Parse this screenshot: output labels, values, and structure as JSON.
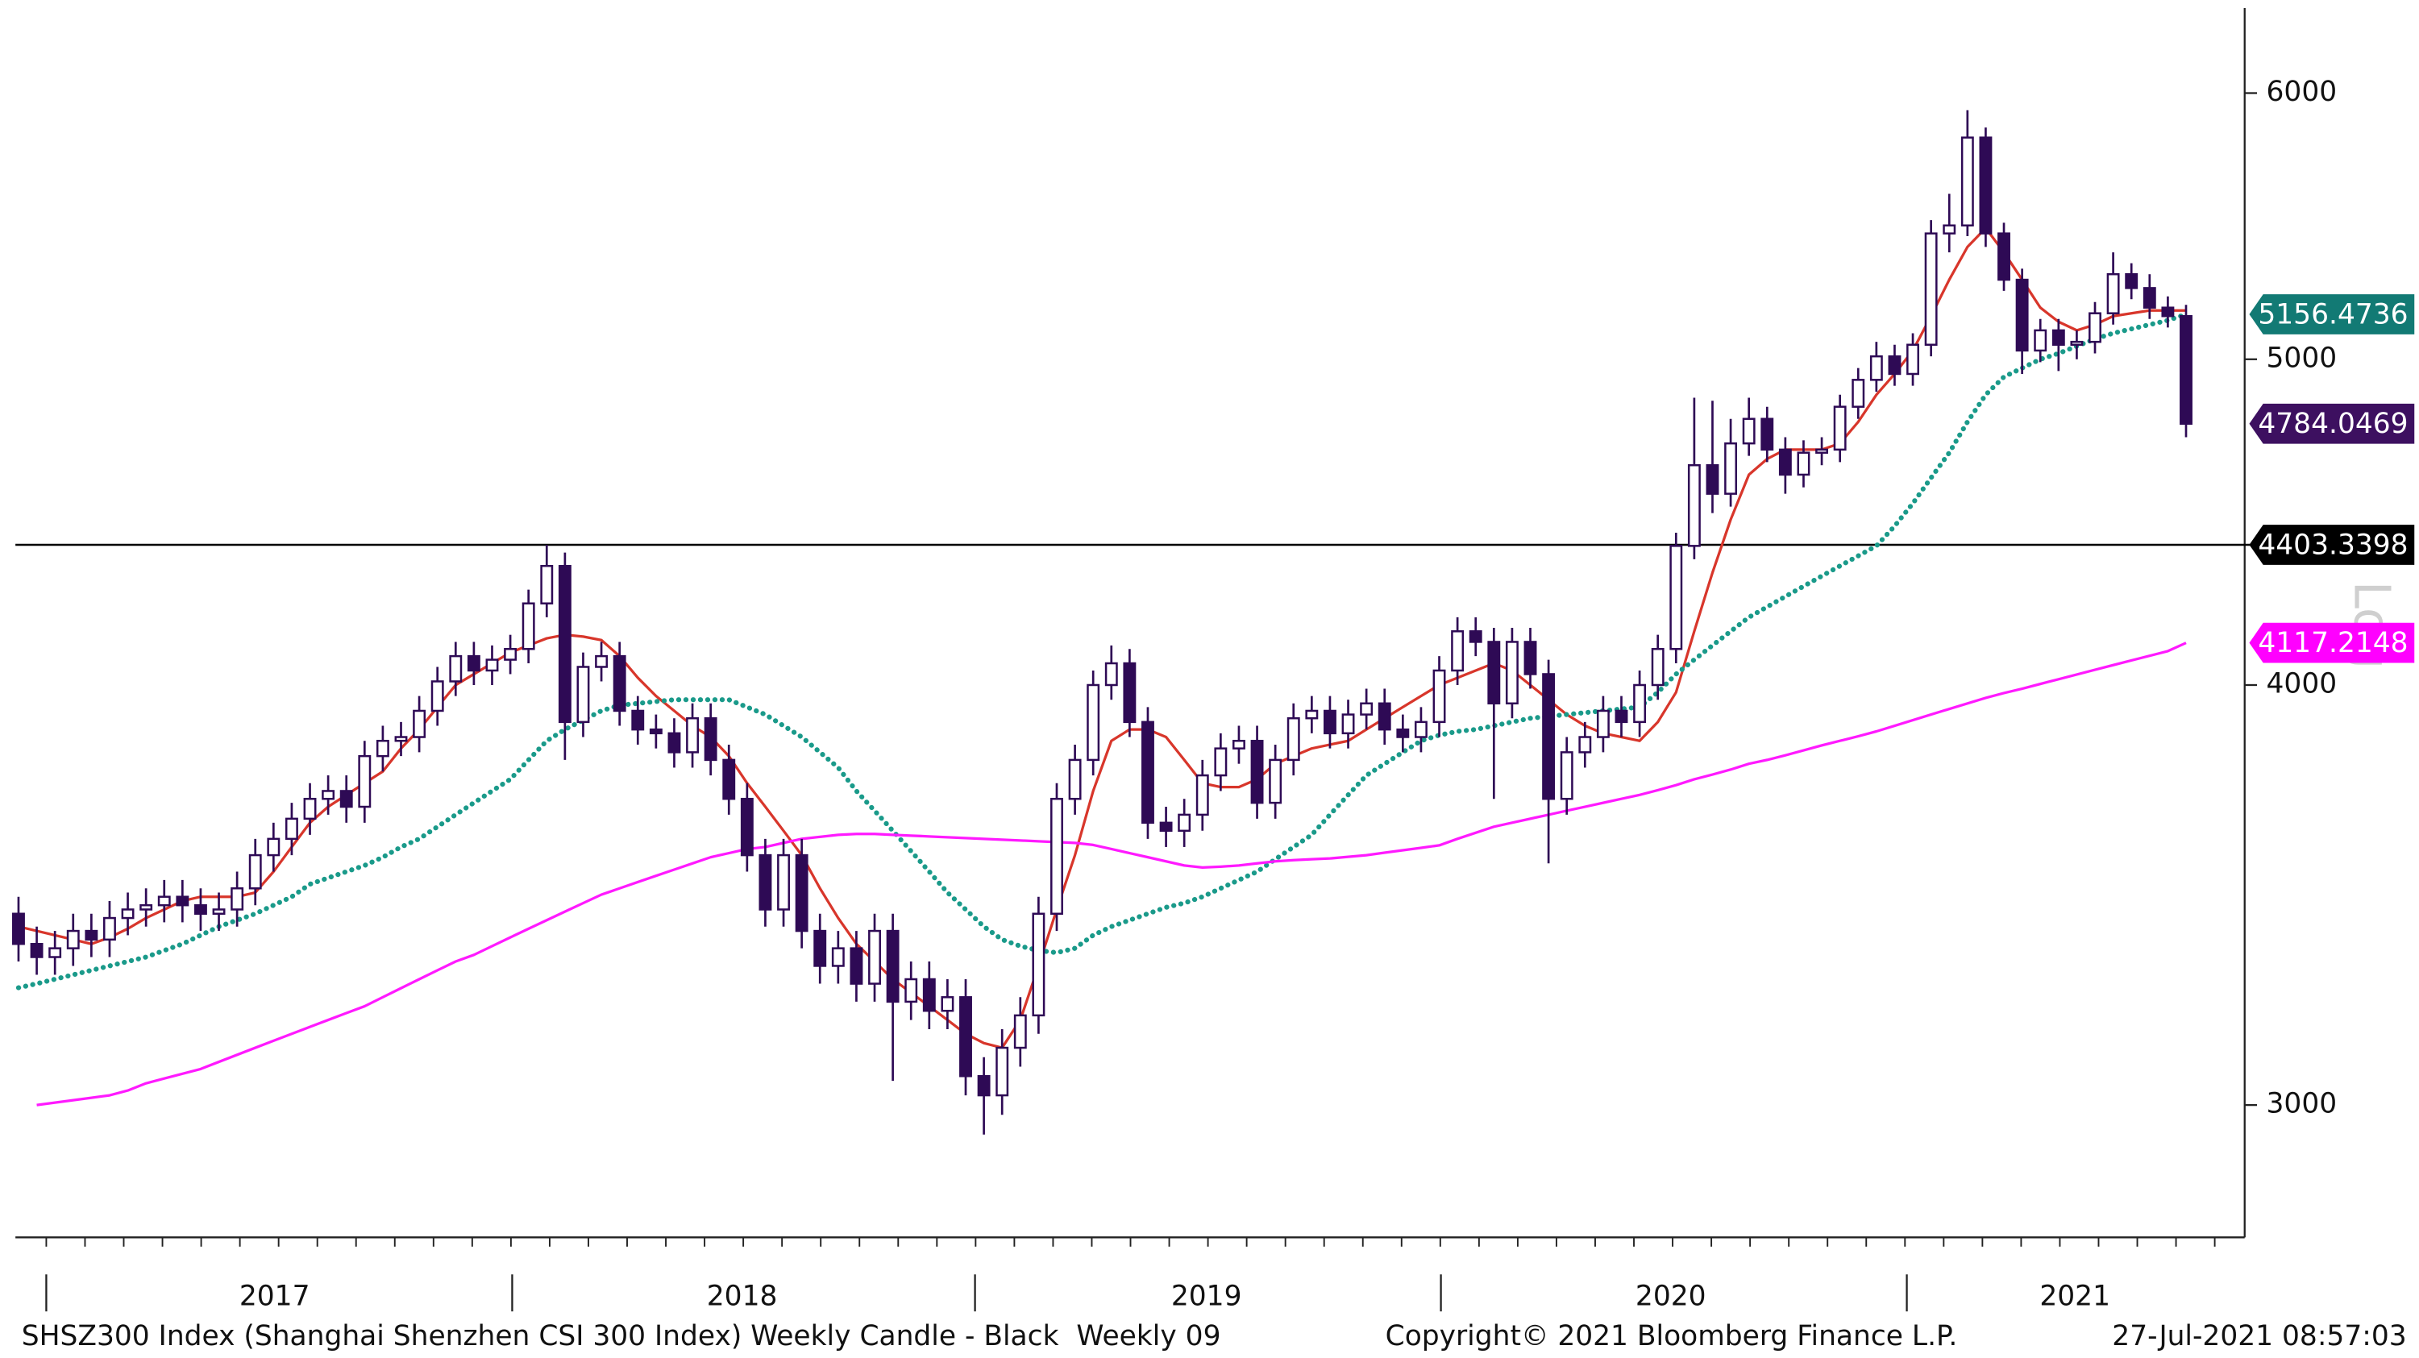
{
  "chart_data": {
    "type": "candlestick",
    "log": true,
    "scale_label": "Log",
    "ylim": [
      2740,
      6360
    ],
    "yticks": [
      3000,
      4000,
      5000,
      6000
    ],
    "x_labels": [
      "2017",
      "2018",
      "2019",
      "2020",
      "2021"
    ],
    "candles": {
      "color": "#2e0a55",
      "tag": true,
      "tag_color": "#3d1060",
      "open": [
        3420,
        3350,
        3320,
        3340,
        3380,
        3360,
        3410,
        3430,
        3440,
        3460,
        3440,
        3420,
        3430,
        3480,
        3560,
        3600,
        3650,
        3700,
        3720,
        3680,
        3810,
        3850,
        3860,
        3930,
        4010,
        4080,
        4040,
        4070,
        4100,
        4230,
        4340,
        3900,
        4050,
        4080,
        3930,
        3880,
        3870,
        3820,
        3910,
        3800,
        3700,
        3560,
        3430,
        3560,
        3380,
        3300,
        3340,
        3260,
        3380,
        3220,
        3270,
        3200,
        3230,
        3060,
        3020,
        3120,
        3190,
        3420,
        3700,
        3800,
        4000,
        4060,
        3900,
        3640,
        3620,
        3660,
        3760,
        3830,
        3850,
        3690,
        3800,
        3910,
        3930,
        3870,
        3920,
        3950,
        3880,
        3860,
        3900,
        4040,
        4150,
        4120,
        3950,
        4120,
        4030,
        3700,
        3820,
        3860,
        3930,
        3900,
        4000,
        4100,
        4400,
        4650,
        4560,
        4720,
        4800,
        4700,
        4620,
        4690,
        4700,
        4840,
        4930,
        5010,
        4950,
        5050,
        5450,
        5480,
        5820,
        5450,
        5280,
        5030,
        5100,
        5050,
        5060,
        5160,
        5300,
        5250,
        5180,
        5150
      ],
      "high": [
        3460,
        3390,
        3380,
        3420,
        3420,
        3450,
        3470,
        3480,
        3500,
        3500,
        3480,
        3470,
        3520,
        3600,
        3640,
        3690,
        3740,
        3760,
        3760,
        3850,
        3890,
        3900,
        3970,
        4050,
        4120,
        4120,
        4110,
        4140,
        4270,
        4403.3398,
        4380,
        4090,
        4120,
        4120,
        3970,
        3920,
        3910,
        3950,
        3950,
        3840,
        3740,
        3600,
        3600,
        3600,
        3420,
        3380,
        3380,
        3420,
        3420,
        3310,
        3310,
        3270,
        3270,
        3100,
        3160,
        3230,
        3460,
        3740,
        3840,
        4040,
        4110,
        4100,
        3940,
        3680,
        3700,
        3800,
        3870,
        3890,
        3890,
        3840,
        3950,
        3970,
        3970,
        3960,
        3990,
        3990,
        3920,
        3940,
        4080,
        4190,
        4190,
        4160,
        4160,
        4160,
        4070,
        3860,
        3900,
        3970,
        3970,
        4040,
        4140,
        4440,
        4870,
        4860,
        4800,
        4870,
        4840,
        4740,
        4730,
        4740,
        4880,
        4970,
        5060,
        5050,
        5090,
        5500,
        5600,
        5930,
        5860,
        5490,
        5320,
        5140,
        5140,
        5100,
        5200,
        5380,
        5340,
        5300,
        5220,
        5190
      ],
      "low": [
        3310,
        3280,
        3280,
        3300,
        3320,
        3320,
        3370,
        3390,
        3400,
        3400,
        3380,
        3380,
        3390,
        3440,
        3520,
        3560,
        3610,
        3660,
        3640,
        3640,
        3770,
        3810,
        3820,
        3890,
        3970,
        4000,
        4000,
        4030,
        4060,
        4190,
        3800,
        3860,
        4010,
        3890,
        3840,
        3830,
        3780,
        3780,
        3760,
        3660,
        3520,
        3390,
        3390,
        3340,
        3260,
        3260,
        3220,
        3220,
        3050,
        3180,
        3160,
        3160,
        3020,
        2940,
        2980,
        3080,
        3150,
        3380,
        3660,
        3760,
        3960,
        3860,
        3600,
        3580,
        3580,
        3620,
        3720,
        3790,
        3650,
        3650,
        3760,
        3870,
        3830,
        3830,
        3880,
        3840,
        3820,
        3820,
        3860,
        4000,
        4080,
        3700,
        3910,
        3990,
        3540,
        3660,
        3780,
        3820,
        3860,
        3860,
        3960,
        4060,
        4360,
        4500,
        4520,
        4680,
        4660,
        4560,
        4580,
        4650,
        4660,
        4800,
        4890,
        4910,
        4910,
        5010,
        5380,
        5440,
        5400,
        5240,
        4950,
        4990,
        4960,
        5000,
        5020,
        5120,
        5210,
        5140,
        5110,
        4740
      ],
      "close": [
        3350,
        3320,
        3340,
        3380,
        3360,
        3410,
        3430,
        3440,
        3460,
        3440,
        3420,
        3430,
        3480,
        3560,
        3600,
        3650,
        3700,
        3720,
        3680,
        3810,
        3850,
        3860,
        3930,
        4010,
        4080,
        4040,
        4070,
        4100,
        4230,
        4340,
        3900,
        4050,
        4080,
        3930,
        3880,
        3870,
        3820,
        3910,
        3800,
        3700,
        3560,
        3430,
        3560,
        3380,
        3300,
        3340,
        3260,
        3380,
        3220,
        3270,
        3200,
        3230,
        3060,
        3020,
        3120,
        3190,
        3420,
        3700,
        3800,
        4000,
        4060,
        3900,
        3640,
        3620,
        3660,
        3760,
        3830,
        3850,
        3690,
        3800,
        3910,
        3930,
        3870,
        3920,
        3950,
        3880,
        3860,
        3900,
        4040,
        4150,
        4120,
        3950,
        4120,
        4030,
        3700,
        3820,
        3860,
        3930,
        3900,
        4000,
        4100,
        4400,
        4650,
        4560,
        4720,
        4800,
        4700,
        4620,
        4690,
        4700,
        4840,
        4930,
        5010,
        4950,
        5050,
        5450,
        5480,
        5820,
        5450,
        5280,
        5030,
        5100,
        5050,
        5060,
        5160,
        5300,
        5250,
        5180,
        5150,
        4784.0469
      ]
    },
    "series": [
      {
        "color": "#d8362b",
        "style": "solid",
        "tag": false,
        "values": [
          3390,
          3380,
          3370,
          3360,
          3350,
          3365,
          3385,
          3410,
          3430,
          3450,
          3460,
          3460,
          3460,
          3470,
          3520,
          3580,
          3640,
          3680,
          3710,
          3740,
          3770,
          3830,
          3880,
          3940,
          4000,
          4030,
          4060,
          4090,
          4110,
          4130,
          4140,
          4135,
          4125,
          4080,
          4020,
          3970,
          3930,
          3890,
          3860,
          3810,
          3740,
          3680,
          3620,
          3560,
          3480,
          3410,
          3350,
          3310,
          3270,
          3240,
          3210,
          3180,
          3150,
          3130,
          3120,
          3180,
          3300,
          3430,
          3560,
          3720,
          3850,
          3880,
          3880,
          3860,
          3800,
          3740,
          3730,
          3730,
          3750,
          3790,
          3810,
          3830,
          3840,
          3850,
          3880,
          3910,
          3940,
          3970,
          4000,
          4020,
          4040,
          4060,
          4040,
          4000,
          3960,
          3920,
          3890,
          3870,
          3860,
          3850,
          3900,
          3980,
          4150,
          4320,
          4480,
          4620,
          4670,
          4700,
          4700,
          4700,
          4720,
          4790,
          4880,
          4950,
          5030,
          5150,
          5280,
          5400,
          5470,
          5380,
          5280,
          5180,
          5130,
          5100,
          5120,
          5150,
          5160,
          5170,
          5170,
          5170
        ]
      },
      {
        "color": "#1a9a8a",
        "style": "dotted",
        "tag": true,
        "tag_color": "#127a74",
        "values": [
          3251,
          3260,
          3270,
          3280,
          3290,
          3300,
          3310,
          3320,
          3335,
          3350,
          3370,
          3390,
          3405,
          3420,
          3440,
          3460,
          3490,
          3505,
          3520,
          3535,
          3555,
          3580,
          3600,
          3630,
          3660,
          3690,
          3720,
          3750,
          3800,
          3850,
          3880,
          3905,
          3930,
          3945,
          3950,
          3955,
          3960,
          3960,
          3960,
          3960,
          3940,
          3920,
          3890,
          3860,
          3820,
          3780,
          3720,
          3670,
          3620,
          3570,
          3520,
          3470,
          3430,
          3390,
          3360,
          3345,
          3335,
          3330,
          3340,
          3370,
          3390,
          3405,
          3420,
          3435,
          3445,
          3460,
          3480,
          3500,
          3520,
          3550,
          3580,
          3610,
          3660,
          3710,
          3760,
          3790,
          3820,
          3850,
          3865,
          3875,
          3880,
          3890,
          3900,
          3910,
          3915,
          3920,
          3925,
          3930,
          3935,
          3940,
          3980,
          4030,
          4070,
          4110,
          4150,
          4190,
          4220,
          4250,
          4280,
          4310,
          4340,
          4370,
          4400,
          4460,
          4530,
          4610,
          4690,
          4790,
          4880,
          4940,
          4970,
          5000,
          5020,
          5045,
          5070,
          5090,
          5105,
          5120,
          5135,
          5156.4736
        ]
      },
      {
        "color": "#ff1aff",
        "style": "solid",
        "tag": true,
        "tag_color": "#ff00ff",
        "values": [
          null,
          3000,
          3005,
          3010,
          3015,
          3020,
          3030,
          3045,
          3055,
          3065,
          3075,
          3090,
          3105,
          3120,
          3135,
          3150,
          3165,
          3180,
          3195,
          3210,
          3230,
          3250,
          3270,
          3290,
          3310,
          3325,
          3345,
          3365,
          3385,
          3405,
          3425,
          3445,
          3465,
          3480,
          3495,
          3510,
          3525,
          3540,
          3555,
          3565,
          3575,
          3580,
          3590,
          3600,
          3605,
          3610,
          3612,
          3612,
          3610,
          3608,
          3606,
          3604,
          3602,
          3600,
          3598,
          3596,
          3594,
          3592,
          3590,
          3585,
          3575,
          3565,
          3555,
          3545,
          3535,
          3530,
          3532,
          3535,
          3540,
          3545,
          3548,
          3550,
          3552,
          3556,
          3560,
          3566,
          3572,
          3578,
          3584,
          3600,
          3615,
          3630,
          3640,
          3650,
          3660,
          3670,
          3680,
          3690,
          3700,
          3710,
          3722,
          3735,
          3750,
          3762,
          3775,
          3790,
          3800,
          3812,
          3825,
          3838,
          3850,
          3862,
          3875,
          3890,
          3905,
          3920,
          3935,
          3950,
          3965,
          3978,
          3990,
          4003,
          4016,
          4029,
          4042,
          4055,
          4068,
          4081,
          4094,
          4117.2148
        ]
      }
    ],
    "hline": {
      "value": 4403.3398,
      "color": "#000000",
      "tag": true,
      "tag_color": "#000000"
    },
    "footer": {
      "left": "SHSZ300 Index (Shanghai Shenzhen CSI 300 Index) Weekly Candle - Black  Weekly 09",
      "center": "Copyright© 2021 Bloomberg Finance L.P.",
      "right": "27-Jul-2021 08:57:03"
    }
  }
}
